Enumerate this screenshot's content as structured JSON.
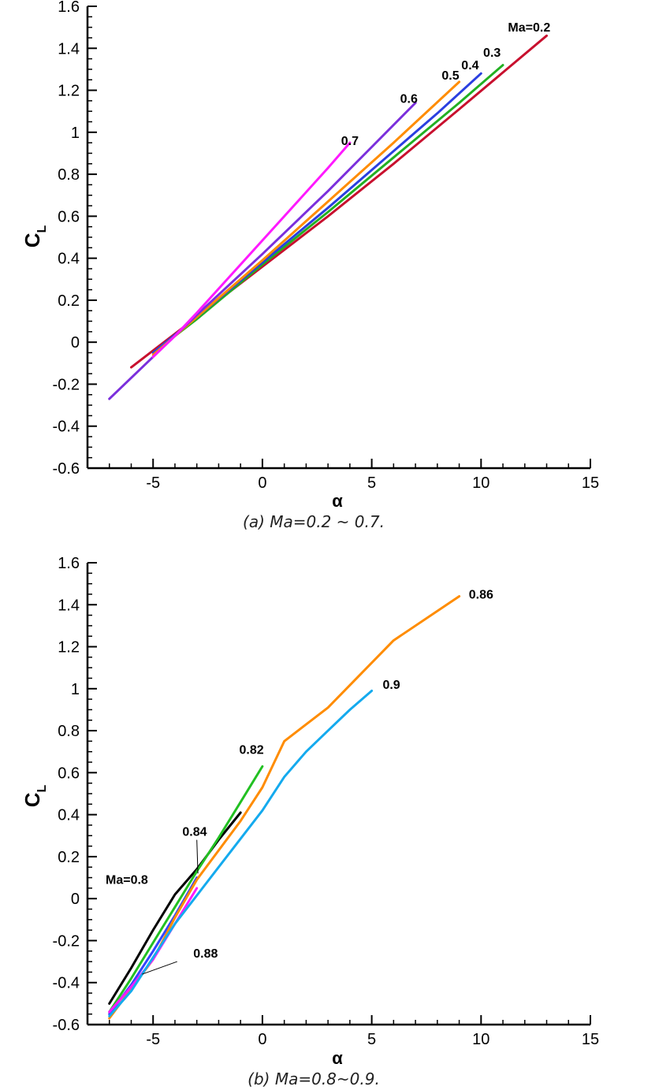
{
  "chart_data": [
    {
      "type": "line",
      "caption": "(a)  Ma=0.2 ~ 0.7.",
      "xlabel": "α",
      "ylabel": "C",
      "ylabel_sub": "L",
      "xlim": [
        -8,
        15
      ],
      "ylim": [
        -0.6,
        1.6
      ],
      "xticks": [
        -5,
        0,
        5,
        10,
        15
      ],
      "yticks": [
        -0.6,
        -0.4,
        -0.2,
        0,
        0.2,
        0.4,
        0.6,
        0.8,
        1,
        1.2,
        1.4,
        1.6
      ],
      "series": [
        {
          "name": "Ma=0.2",
          "color": "#c8102e",
          "label_at": [
            12.2,
            1.48
          ],
          "points": [
            [
              -6,
              -0.12
            ],
            [
              -3,
              0.12
            ],
            [
              0,
              0.36
            ],
            [
              3,
              0.6
            ],
            [
              6,
              0.85
            ],
            [
              9,
              1.11
            ],
            [
              13,
              1.46
            ]
          ]
        },
        {
          "name": "0.3",
          "color": "#22b022",
          "label_at": [
            10.5,
            1.36
          ],
          "points": [
            [
              -5,
              -0.05
            ],
            [
              -3,
              0.11
            ],
            [
              0,
              0.37
            ],
            [
              3,
              0.62
            ],
            [
              6,
              0.88
            ],
            [
              9,
              1.14
            ],
            [
              11,
              1.32
            ]
          ]
        },
        {
          "name": "0.4",
          "color": "#2a3fe0",
          "label_at": [
            9.5,
            1.3
          ],
          "points": [
            [
              -5,
              -0.05
            ],
            [
              -3,
              0.12
            ],
            [
              0,
              0.38
            ],
            [
              3,
              0.64
            ],
            [
              6,
              0.91
            ],
            [
              8,
              1.09
            ],
            [
              10,
              1.28
            ]
          ]
        },
        {
          "name": "0.5",
          "color": "#ff8c00",
          "label_at": [
            8.6,
            1.25
          ],
          "points": [
            [
              -5,
              -0.06
            ],
            [
              -3,
              0.12
            ],
            [
              0,
              0.39
            ],
            [
              3,
              0.67
            ],
            [
              6,
              0.95
            ],
            [
              9,
              1.24
            ]
          ]
        },
        {
          "name": "0.6",
          "color": "#7b2fdc",
          "label_at": [
            6.7,
            1.14
          ],
          "points": [
            [
              -7,
              -0.27
            ],
            [
              -5,
              -0.07
            ],
            [
              -3,
              0.13
            ],
            [
              0,
              0.42
            ],
            [
              3,
              0.72
            ],
            [
              5,
              0.93
            ],
            [
              7,
              1.14
            ]
          ]
        },
        {
          "name": "0.7",
          "color": "#ff19ff",
          "label_at": [
            4.0,
            0.94
          ],
          "points": [
            [
              -5,
              -0.07
            ],
            [
              -4,
              0.03
            ],
            [
              -3,
              0.14
            ],
            [
              -1,
              0.37
            ],
            [
              1,
              0.6
            ],
            [
              3,
              0.83
            ],
            [
              4,
              0.95
            ]
          ]
        }
      ]
    },
    {
      "type": "line",
      "caption": "(b) Ma=0.8~0.9.",
      "xlabel": "α",
      "ylabel": "C",
      "ylabel_sub": "L",
      "xlim": [
        -8,
        15
      ],
      "ylim": [
        -0.6,
        1.6
      ],
      "xticks": [
        -5,
        0,
        5,
        10,
        15
      ],
      "yticks": [
        -0.6,
        -0.4,
        -0.2,
        0,
        0.2,
        0.4,
        0.6,
        0.8,
        1,
        1.2,
        1.4,
        1.6
      ],
      "series": [
        {
          "name": "Ma=0.8",
          "color": "#000000",
          "label_at": [
            -6.2,
            0.07
          ],
          "points": [
            [
              -7,
              -0.5
            ],
            [
              -6,
              -0.33
            ],
            [
              -5,
              -0.15
            ],
            [
              -4,
              0.02
            ],
            [
              -3,
              0.14
            ],
            [
              -2,
              0.28
            ],
            [
              -1,
              0.41
            ]
          ]
        },
        {
          "name": "0.82",
          "color": "#22c022",
          "label_at": [
            -0.5,
            0.69
          ],
          "points": [
            [
              -7,
              -0.54
            ],
            [
              -6,
              -0.38
            ],
            [
              -5,
              -0.21
            ],
            [
              -4,
              -0.04
            ],
            [
              -3,
              0.13
            ],
            [
              -2,
              0.29
            ],
            [
              -1,
              0.46
            ],
            [
              0,
              0.63
            ]
          ]
        },
        {
          "name": "0.84",
          "color": "#3344ff",
          "label_at": [
            -3.1,
            0.3
          ],
          "points": [
            [
              -7,
              -0.55
            ],
            [
              -6,
              -0.41
            ],
            [
              -5,
              -0.25
            ],
            [
              -4,
              -0.08
            ],
            [
              -3,
              0.1
            ]
          ]
        },
        {
          "name": "0.86",
          "color": "#ff8c00",
          "label_at": [
            10.0,
            1.43
          ],
          "points": [
            [
              -7,
              -0.57
            ],
            [
              -5,
              -0.29
            ],
            [
              -4,
              -0.09
            ],
            [
              -3,
              0.09
            ],
            [
              -1,
              0.37
            ],
            [
              0,
              0.53
            ],
            [
              1,
              0.75
            ],
            [
              3,
              0.91
            ],
            [
              6,
              1.23
            ],
            [
              9,
              1.44
            ]
          ]
        },
        {
          "name": "0.88",
          "color": "#ff19ff",
          "label_at": [
            -2.6,
            -0.28
          ],
          "points": [
            [
              -7,
              -0.54
            ],
            [
              -6,
              -0.42
            ],
            [
              -5,
              -0.29
            ],
            [
              -4,
              -0.12
            ],
            [
              -3,
              0.05
            ]
          ]
        },
        {
          "name": "0.9",
          "color": "#14aaee",
          "label_at": [
            5.9,
            1.0
          ],
          "points": [
            [
              -7,
              -0.56
            ],
            [
              -6,
              -0.44
            ],
            [
              -5,
              -0.28
            ],
            [
              -4,
              -0.12
            ],
            [
              -2,
              0.15
            ],
            [
              0,
              0.42
            ],
            [
              1,
              0.58
            ],
            [
              2,
              0.7
            ],
            [
              3,
              0.8
            ],
            [
              4,
              0.9
            ],
            [
              5,
              0.99
            ]
          ]
        }
      ],
      "leaders": [
        {
          "series": "0.84",
          "from": [
            -3.0,
            0.28
          ],
          "to": [
            -2.95,
            0.12
          ]
        },
        {
          "series": "0.88",
          "from": [
            -3.9,
            -0.3
          ],
          "to": [
            -5.5,
            -0.36
          ]
        }
      ]
    }
  ]
}
